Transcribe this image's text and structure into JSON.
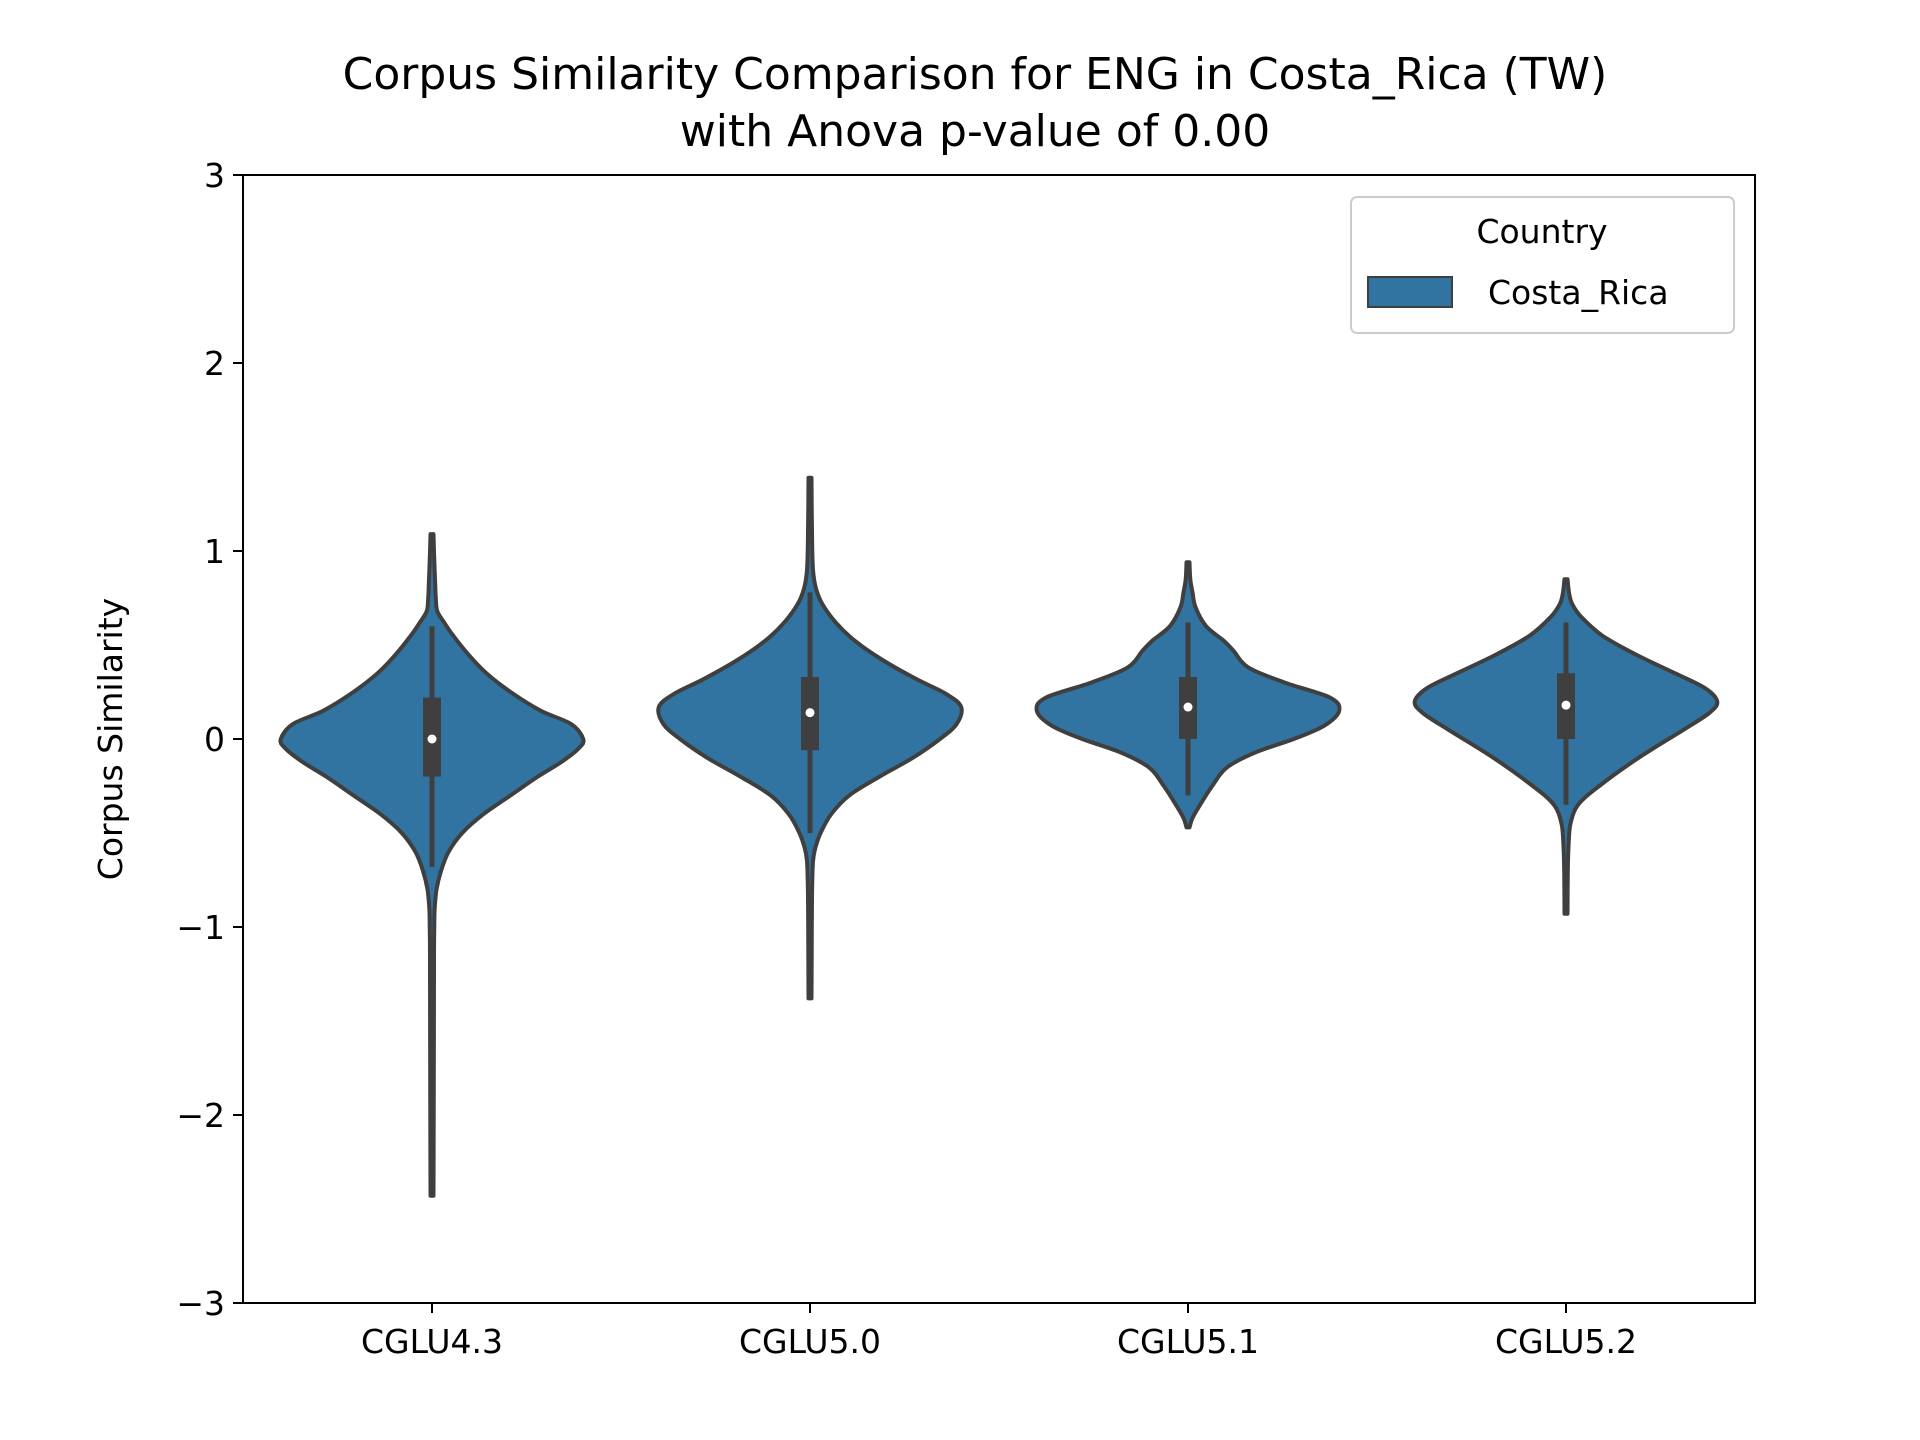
{
  "chart_data": {
    "type": "violin",
    "title_line1": "Corpus Similarity Comparison for ENG in Costa_Rica (TW)",
    "title_line2": "with Anova p-value of 0.00",
    "xlabel": "",
    "ylabel": "Corpus Similarity",
    "ylim": [
      -3,
      3
    ],
    "yticks": [
      -3,
      -2,
      -1,
      0,
      1,
      2,
      3
    ],
    "ytick_labels": [
      "−3",
      "−2",
      "−1",
      "0",
      "1",
      "2",
      "3"
    ],
    "categories": [
      "CGLU4.3",
      "CGLU5.0",
      "CGLU5.1",
      "CGLU5.2"
    ],
    "legend": {
      "title": "Country",
      "entries": [
        "Costa_Rica"
      ],
      "position": "top-right"
    },
    "colors": {
      "fill": "#3274a1",
      "edge": "#3f3f3f",
      "median": "#ffffff"
    },
    "grid": false,
    "series": [
      {
        "name": "Costa_Rica",
        "violins": [
          {
            "category": "CGLU4.3",
            "median": 0.0,
            "q1": -0.2,
            "q3": 0.22,
            "whisker_low": -0.68,
            "whisker_high": 0.6,
            "profile": [
              [
                -2.43,
                0.01
              ],
              [
                -1.8,
                0.012
              ],
              [
                -1.2,
                0.013
              ],
              [
                -1.0,
                0.015
              ],
              [
                -0.9,
                0.018
              ],
              [
                -0.8,
                0.03
              ],
              [
                -0.7,
                0.06
              ],
              [
                -0.6,
                0.11
              ],
              [
                -0.5,
                0.2
              ],
              [
                -0.4,
                0.34
              ],
              [
                -0.3,
                0.52
              ],
              [
                -0.2,
                0.7
              ],
              [
                -0.12,
                0.86
              ],
              [
                -0.05,
                0.97
              ],
              [
                0.0,
                1.0
              ],
              [
                0.08,
                0.92
              ],
              [
                0.15,
                0.72
              ],
              [
                0.25,
                0.52
              ],
              [
                0.35,
                0.36
              ],
              [
                0.45,
                0.24
              ],
              [
                0.55,
                0.14
              ],
              [
                0.62,
                0.08
              ],
              [
                0.68,
                0.035
              ],
              [
                0.75,
                0.025
              ],
              [
                0.85,
                0.02
              ],
              [
                0.95,
                0.015
              ],
              [
                1.09,
                0.01
              ]
            ]
          },
          {
            "category": "CGLU5.0",
            "median": 0.14,
            "q1": -0.06,
            "q3": 0.33,
            "whisker_low": -0.5,
            "whisker_high": 0.78,
            "profile": [
              [
                -1.38,
                0.01
              ],
              [
                -1.0,
                0.012
              ],
              [
                -0.8,
                0.014
              ],
              [
                -0.65,
                0.02
              ],
              [
                -0.58,
                0.035
              ],
              [
                -0.5,
                0.07
              ],
              [
                -0.4,
                0.14
              ],
              [
                -0.3,
                0.26
              ],
              [
                -0.2,
                0.46
              ],
              [
                -0.1,
                0.68
              ],
              [
                0.0,
                0.86
              ],
              [
                0.08,
                0.97
              ],
              [
                0.17,
                1.0
              ],
              [
                0.24,
                0.9
              ],
              [
                0.32,
                0.7
              ],
              [
                0.42,
                0.48
              ],
              [
                0.52,
                0.3
              ],
              [
                0.62,
                0.17
              ],
              [
                0.72,
                0.08
              ],
              [
                0.8,
                0.04
              ],
              [
                0.9,
                0.02
              ],
              [
                1.1,
                0.013
              ],
              [
                1.39,
                0.01
              ]
            ]
          },
          {
            "category": "CGLU5.1",
            "median": 0.17,
            "q1": 0.0,
            "q3": 0.33,
            "whisker_low": -0.3,
            "whisker_high": 0.62,
            "profile": [
              [
                -0.47,
                0.01
              ],
              [
                -0.42,
                0.03
              ],
              [
                -0.35,
                0.08
              ],
              [
                -0.25,
                0.16
              ],
              [
                -0.15,
                0.26
              ],
              [
                -0.07,
                0.45
              ],
              [
                0.0,
                0.7
              ],
              [
                0.07,
                0.9
              ],
              [
                0.15,
                1.0
              ],
              [
                0.22,
                0.94
              ],
              [
                0.3,
                0.64
              ],
              [
                0.38,
                0.4
              ],
              [
                0.47,
                0.3
              ],
              [
                0.52,
                0.24
              ],
              [
                0.6,
                0.12
              ],
              [
                0.7,
                0.05
              ],
              [
                0.78,
                0.03
              ],
              [
                0.85,
                0.015
              ],
              [
                0.94,
                0.01
              ]
            ]
          },
          {
            "category": "CGLU5.2",
            "median": 0.18,
            "q1": 0.0,
            "q3": 0.35,
            "whisker_low": -0.35,
            "whisker_high": 0.62,
            "profile": [
              [
                -0.93,
                0.01
              ],
              [
                -0.7,
                0.012
              ],
              [
                -0.55,
                0.018
              ],
              [
                -0.45,
                0.03
              ],
              [
                -0.35,
                0.08
              ],
              [
                -0.25,
                0.22
              ],
              [
                -0.1,
                0.48
              ],
              [
                0.05,
                0.78
              ],
              [
                0.14,
                0.95
              ],
              [
                0.2,
                1.0
              ],
              [
                0.27,
                0.92
              ],
              [
                0.35,
                0.72
              ],
              [
                0.45,
                0.46
              ],
              [
                0.55,
                0.24
              ],
              [
                0.65,
                0.1
              ],
              [
                0.72,
                0.04
              ],
              [
                0.78,
                0.02
              ],
              [
                0.85,
                0.01
              ]
            ]
          }
        ]
      }
    ]
  }
}
